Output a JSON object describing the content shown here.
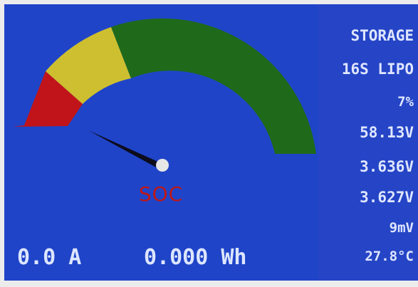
{
  "gauge": {
    "label": "SOC",
    "needle_percent": 7,
    "zones": [
      {
        "name": "red",
        "color": "#c0141a"
      },
      {
        "name": "yellow",
        "color": "#cdbf30"
      },
      {
        "name": "green",
        "color": "#1f6a1a"
      }
    ],
    "needle_color": "#0c0c1c",
    "hub_color": "#e6e6e6"
  },
  "bottom": {
    "current": "0.0 A",
    "energy": "0.000 Wh"
  },
  "side": {
    "mode": "STORAGE",
    "battery": "16S LIPO",
    "percent": "7%",
    "pack_voltage": "58.13V",
    "max_cell": "3.636V",
    "min_cell": "3.627V",
    "delta": "9mV",
    "temperature": "27.8°C"
  },
  "colors": {
    "background": "#1f44c8",
    "text": "#dfe6ff",
    "soc_label": "#c01818"
  }
}
